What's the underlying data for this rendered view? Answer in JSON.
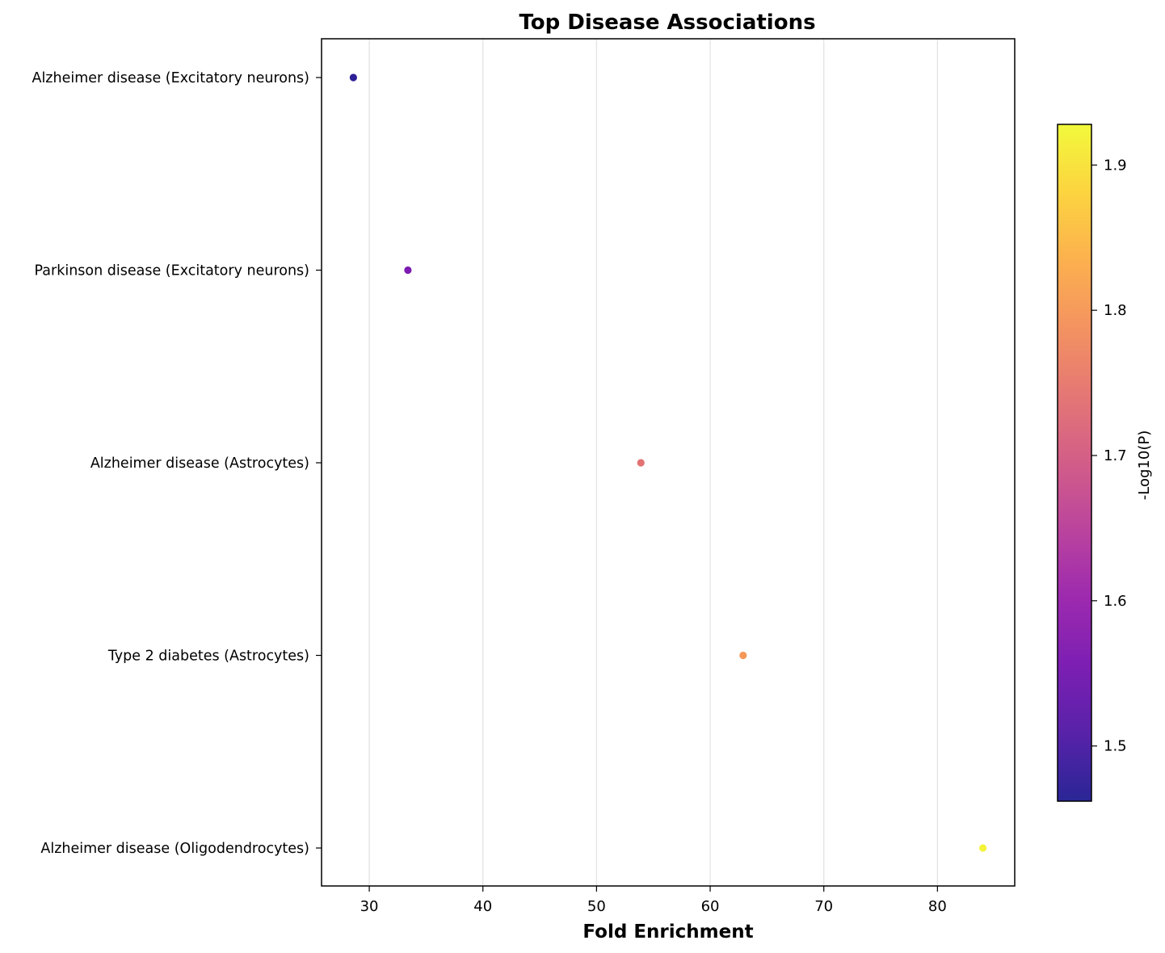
{
  "chart_data": {
    "type": "scatter",
    "title": "Top Disease Associations",
    "xlabel": "Fold Enrichment",
    "ylabel": "",
    "xlim": [
      25.8,
      86.8
    ],
    "xticks": [
      30,
      40,
      50,
      60,
      70,
      80
    ],
    "categories": [
      "Alzheimer disease (Excitatory neurons)",
      "Parkinson disease (Excitatory neurons)",
      "Alzheimer disease (Astrocytes)",
      "Type 2 diabetes (Astrocytes)",
      "Alzheimer disease (Oligodendrocytes)"
    ],
    "points": [
      {
        "category": "Alzheimer disease (Excitatory neurons)",
        "x": 28.6,
        "neg_log10_p": 1.47
      },
      {
        "category": "Parkinson disease (Excitatory neurons)",
        "x": 33.4,
        "neg_log10_p": 1.56
      },
      {
        "category": "Alzheimer disease (Astrocytes)",
        "x": 53.9,
        "neg_log10_p": 1.74
      },
      {
        "category": "Type 2 diabetes (Astrocytes)",
        "x": 62.9,
        "neg_log10_p": 1.8
      },
      {
        "category": "Alzheimer disease (Oligodendrocytes)",
        "x": 84.0,
        "neg_log10_p": 1.92
      }
    ],
    "colorbar": {
      "label": "-Log10(P)",
      "range": [
        1.462,
        1.928
      ],
      "ticks": [
        1.5,
        1.6,
        1.7,
        1.8,
        1.9
      ],
      "tick_labels": [
        "1.5",
        "1.6",
        "1.7",
        "1.8",
        "1.9"
      ],
      "colormap": "plasma"
    },
    "grid": "x"
  }
}
